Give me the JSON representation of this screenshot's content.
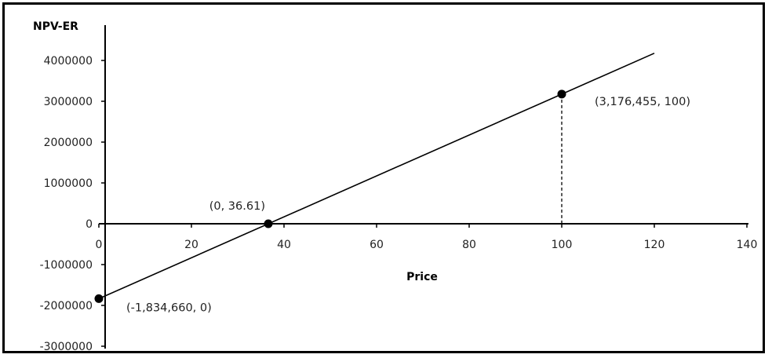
{
  "chart_data": {
    "type": "line",
    "title": "",
    "xlabel": "Price",
    "ylabel": "NPV-ER",
    "xlim": [
      0,
      140
    ],
    "ylim": [
      -3000000,
      4000000
    ],
    "x_ticks": [
      "0",
      "20",
      "40",
      "60",
      "80",
      "100",
      "120",
      "140"
    ],
    "y_ticks": [
      "4000000",
      "3000000",
      "2000000",
      "1000000",
      "0",
      "-1000000",
      "-2000000",
      "-3000000"
    ],
    "grid": false,
    "legend": "none",
    "series": [
      {
        "x": [
          0,
          120
        ],
        "y": [
          -1834660,
          4176455
        ],
        "color": "#000000"
      }
    ],
    "points": [
      {
        "x": 0,
        "y": -1834660,
        "label": "(-1,834,660, 0)"
      },
      {
        "x": 36.61,
        "y": 0,
        "label": "(0, 36.61)"
      },
      {
        "x": 100,
        "y": 3176455,
        "label": "(3,176,455, 100)"
      }
    ]
  }
}
